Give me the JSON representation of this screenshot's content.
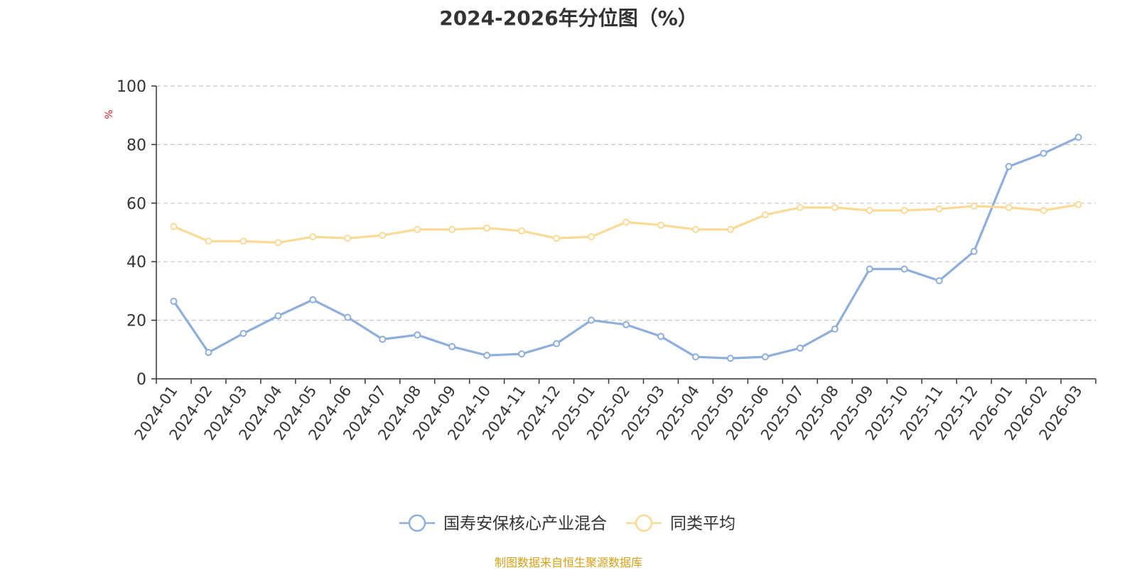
{
  "chart_data": {
    "type": "line",
    "title": "2024-2026年分位图（%）",
    "ylabel": "%",
    "xlabel": "",
    "ylim": [
      0,
      100
    ],
    "yticks": [
      0,
      20,
      40,
      60,
      80,
      100
    ],
    "grid": true,
    "legend_position": "bottom",
    "categories": [
      "2024-01",
      "2024-02",
      "2024-03",
      "2024-04",
      "2024-05",
      "2024-06",
      "2024-07",
      "2024-08",
      "2024-09",
      "2024-10",
      "2024-11",
      "2024-12",
      "2025-01",
      "2025-02",
      "2025-03",
      "2025-04",
      "2025-05",
      "2025-06",
      "2025-07",
      "2025-08",
      "2025-09",
      "2025-10",
      "2025-11",
      "2025-12",
      "2026-01",
      "2026-02",
      "2026-03"
    ],
    "series": [
      {
        "name": "国寿安保核心产业混合",
        "color": "#8eaedb",
        "values": [
          26.5,
          9,
          15.5,
          21.5,
          27,
          21,
          13.5,
          15,
          11,
          8,
          8.5,
          12,
          20,
          18.5,
          14.5,
          7.5,
          7,
          7.5,
          10.5,
          17,
          37.5,
          37.5,
          33.5,
          43.5,
          72.5,
          77,
          82.5
        ]
      },
      {
        "name": "同类平均",
        "color": "#fbd996",
        "values": [
          52,
          47,
          47,
          46.5,
          48.5,
          48,
          49,
          51,
          51,
          51.5,
          50.5,
          48,
          48.5,
          53.5,
          52.5,
          51,
          51,
          56,
          58.5,
          58.5,
          57.5,
          57.5,
          58,
          59,
          58.5,
          57.5,
          59.5
        ]
      }
    ]
  },
  "source": "制图数据来自恒生聚源数据库"
}
